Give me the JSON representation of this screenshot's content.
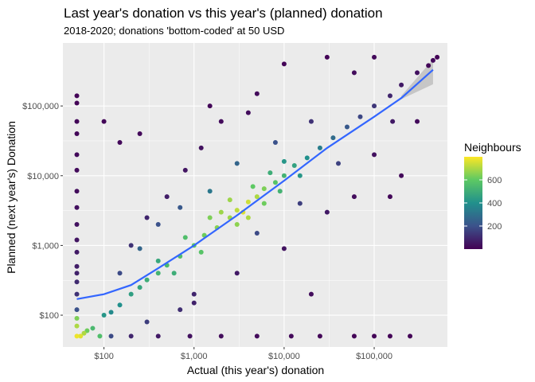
{
  "chart_data": {
    "type": "scatter",
    "title": "Last year's donation vs this year's (planned) donation",
    "subtitle": "2018-2020; donations 'bottom-coded' at 50 USD",
    "xlabel": "Actual (this year's) donation",
    "ylabel": "Planned (next year's) Donation",
    "x_scale": "log10",
    "y_scale": "log10",
    "xlim": [
      35,
      650000
    ],
    "ylim": [
      35,
      800000
    ],
    "x_ticks": [
      {
        "value": 100,
        "label": "$100"
      },
      {
        "value": 1000,
        "label": "$1,000"
      },
      {
        "value": 10000,
        "label": "$10,000"
      },
      {
        "value": 100000,
        "label": "$100,000"
      }
    ],
    "y_ticks": [
      {
        "value": 100,
        "label": "$100"
      },
      {
        "value": 1000,
        "label": "$1,000"
      },
      {
        "value": 10000,
        "label": "$10,000"
      },
      {
        "value": 100000,
        "label": "$100,000"
      }
    ],
    "grid": true,
    "color_variable": "Neighbours",
    "colorbar": {
      "title": "Neighbours",
      "range": [
        0,
        800
      ],
      "ticks": [
        200,
        400,
        600
      ],
      "colors": [
        "#440154",
        "#3b528b",
        "#21908c",
        "#5dc963",
        "#fde725"
      ]
    },
    "trend": {
      "type": "smooth",
      "color": "#3366ff",
      "band_color": "#999999",
      "points": [
        {
          "x": 50,
          "y": 170
        },
        {
          "x": 100,
          "y": 200
        },
        {
          "x": 200,
          "y": 270
        },
        {
          "x": 400,
          "y": 470
        },
        {
          "x": 1000,
          "y": 1000
        },
        {
          "x": 3000,
          "y": 2700
        },
        {
          "x": 10000,
          "y": 8500
        },
        {
          "x": 30000,
          "y": 25000
        },
        {
          "x": 100000,
          "y": 70000
        },
        {
          "x": 200000,
          "y": 130000
        },
        {
          "x": 450000,
          "y": 330000
        }
      ],
      "band_lower": [
        125000,
        205000
      ],
      "band_upper": [
        140000,
        465000
      ]
    },
    "series": [
      {
        "points": [
          {
            "x": 50,
            "y": 50,
            "n": 780
          },
          {
            "x": 55,
            "y": 50,
            "n": 760
          },
          {
            "x": 60,
            "y": 55,
            "n": 700
          },
          {
            "x": 65,
            "y": 60,
            "n": 620
          },
          {
            "x": 75,
            "y": 65,
            "n": 540
          },
          {
            "x": 90,
            "y": 50,
            "n": 560
          },
          {
            "x": 50,
            "y": 70,
            "n": 700
          },
          {
            "x": 50,
            "y": 90,
            "n": 640
          },
          {
            "x": 50,
            "y": 120,
            "n": 200
          },
          {
            "x": 50,
            "y": 200,
            "n": 120
          },
          {
            "x": 50,
            "y": 400,
            "n": 80
          },
          {
            "x": 50,
            "y": 800,
            "n": 60
          },
          {
            "x": 50,
            "y": 2000,
            "n": 40
          },
          {
            "x": 50,
            "y": 6000,
            "n": 30
          },
          {
            "x": 50,
            "y": 20000,
            "n": 20
          },
          {
            "x": 50,
            "y": 60000,
            "n": 15
          },
          {
            "x": 50,
            "y": 140000,
            "n": 10
          },
          {
            "x": 50,
            "y": 110000,
            "n": 10
          },
          {
            "x": 50,
            "y": 40000,
            "n": 15
          },
          {
            "x": 50,
            "y": 12000,
            "n": 25
          },
          {
            "x": 50,
            "y": 3500,
            "n": 35
          },
          {
            "x": 50,
            "y": 1200,
            "n": 50
          },
          {
            "x": 50,
            "y": 500,
            "n": 70
          },
          {
            "x": 50,
            "y": 300,
            "n": 100
          },
          {
            "x": 120,
            "y": 50,
            "n": 180
          },
          {
            "x": 200,
            "y": 50,
            "n": 90
          },
          {
            "x": 400,
            "y": 50,
            "n": 60
          },
          {
            "x": 900,
            "y": 50,
            "n": 40
          },
          {
            "x": 2000,
            "y": 50,
            "n": 30
          },
          {
            "x": 5000,
            "y": 50,
            "n": 25
          },
          {
            "x": 12000,
            "y": 50,
            "n": 20
          },
          {
            "x": 25000,
            "y": 50,
            "n": 15
          },
          {
            "x": 60000,
            "y": 50,
            "n": 10
          },
          {
            "x": 100000,
            "y": 50,
            "n": 10
          },
          {
            "x": 250000,
            "y": 50,
            "n": 10
          },
          {
            "x": 150000,
            "y": 50,
            "n": 10
          },
          {
            "x": 100,
            "y": 100,
            "n": 420
          },
          {
            "x": 120,
            "y": 110,
            "n": 380
          },
          {
            "x": 150,
            "y": 140,
            "n": 400
          },
          {
            "x": 200,
            "y": 200,
            "n": 450
          },
          {
            "x": 250,
            "y": 250,
            "n": 470
          },
          {
            "x": 300,
            "y": 320,
            "n": 500
          },
          {
            "x": 400,
            "y": 400,
            "n": 520
          },
          {
            "x": 500,
            "y": 520,
            "n": 540
          },
          {
            "x": 700,
            "y": 700,
            "n": 560
          },
          {
            "x": 1000,
            "y": 1000,
            "n": 600
          },
          {
            "x": 1300,
            "y": 1400,
            "n": 620
          },
          {
            "x": 1800,
            "y": 1800,
            "n": 650
          },
          {
            "x": 2500,
            "y": 2500,
            "n": 680
          },
          {
            "x": 3000,
            "y": 3200,
            "n": 720
          },
          {
            "x": 3500,
            "y": 3000,
            "n": 760
          },
          {
            "x": 4000,
            "y": 4200,
            "n": 740
          },
          {
            "x": 5000,
            "y": 5000,
            "n": 700
          },
          {
            "x": 6000,
            "y": 6500,
            "n": 640
          },
          {
            "x": 8000,
            "y": 8000,
            "n": 580
          },
          {
            "x": 10000,
            "y": 10000,
            "n": 520
          },
          {
            "x": 13000,
            "y": 14000,
            "n": 460
          },
          {
            "x": 18000,
            "y": 18000,
            "n": 400
          },
          {
            "x": 25000,
            "y": 25000,
            "n": 340
          },
          {
            "x": 35000,
            "y": 35000,
            "n": 280
          },
          {
            "x": 50000,
            "y": 50000,
            "n": 220
          },
          {
            "x": 70000,
            "y": 70000,
            "n": 170
          },
          {
            "x": 100000,
            "y": 100000,
            "n": 130
          },
          {
            "x": 150000,
            "y": 140000,
            "n": 90
          },
          {
            "x": 200000,
            "y": 200000,
            "n": 60
          },
          {
            "x": 300000,
            "y": 300000,
            "n": 40
          },
          {
            "x": 450000,
            "y": 450000,
            "n": 20
          },
          {
            "x": 500000,
            "y": 500000,
            "n": 10
          },
          {
            "x": 400000,
            "y": 380000,
            "n": 15
          },
          {
            "x": 2000,
            "y": 3000,
            "n": 680
          },
          {
            "x": 3000,
            "y": 2000,
            "n": 660
          },
          {
            "x": 1500,
            "y": 2500,
            "n": 640
          },
          {
            "x": 4000,
            "y": 2500,
            "n": 700
          },
          {
            "x": 2500,
            "y": 4500,
            "n": 680
          },
          {
            "x": 6000,
            "y": 4000,
            "n": 620
          },
          {
            "x": 4500,
            "y": 7000,
            "n": 600
          },
          {
            "x": 1200,
            "y": 800,
            "n": 580
          },
          {
            "x": 800,
            "y": 1300,
            "n": 560
          },
          {
            "x": 600,
            "y": 400,
            "n": 500
          },
          {
            "x": 400,
            "y": 600,
            "n": 480
          },
          {
            "x": 9000,
            "y": 6000,
            "n": 520
          },
          {
            "x": 7000,
            "y": 11000,
            "n": 500
          },
          {
            "x": 15000,
            "y": 10000,
            "n": 420
          },
          {
            "x": 10000,
            "y": 16000,
            "n": 420
          },
          {
            "x": 150,
            "y": 400,
            "n": 180
          },
          {
            "x": 200,
            "y": 1000,
            "n": 120
          },
          {
            "x": 300,
            "y": 2500,
            "n": 90
          },
          {
            "x": 500,
            "y": 5000,
            "n": 70
          },
          {
            "x": 800,
            "y": 12000,
            "n": 50
          },
          {
            "x": 1200,
            "y": 25000,
            "n": 40
          },
          {
            "x": 2000,
            "y": 60000,
            "n": 25
          },
          {
            "x": 1500,
            "y": 100000,
            "n": 15
          },
          {
            "x": 4000,
            "y": 80000,
            "n": 30
          },
          {
            "x": 10000,
            "y": 400000,
            "n": 10
          },
          {
            "x": 30000,
            "y": 500000,
            "n": 10
          },
          {
            "x": 100000,
            "y": 500000,
            "n": 20
          },
          {
            "x": 60000,
            "y": 300000,
            "n": 30
          },
          {
            "x": 5000,
            "y": 150000,
            "n": 25
          },
          {
            "x": 300,
            "y": 80,
            "n": 150
          },
          {
            "x": 1000,
            "y": 200,
            "n": 90
          },
          {
            "x": 3000,
            "y": 400,
            "n": 60
          },
          {
            "x": 10000,
            "y": 900,
            "n": 45
          },
          {
            "x": 20000,
            "y": 200,
            "n": 30
          },
          {
            "x": 30000,
            "y": 3000,
            "n": 60
          },
          {
            "x": 100000,
            "y": 20000,
            "n": 40
          },
          {
            "x": 200000,
            "y": 10000,
            "n": 20
          },
          {
            "x": 60000,
            "y": 5000,
            "n": 30
          },
          {
            "x": 160000,
            "y": 60000,
            "n": 60
          },
          {
            "x": 300000,
            "y": 60000,
            "n": 25
          },
          {
            "x": 150000,
            "y": 5000,
            "n": 15
          },
          {
            "x": 400,
            "y": 2000,
            "n": 200
          },
          {
            "x": 700,
            "y": 3500,
            "n": 220
          },
          {
            "x": 250,
            "y": 900,
            "n": 260
          },
          {
            "x": 150,
            "y": 30000,
            "n": 20
          },
          {
            "x": 100,
            "y": 60000,
            "n": 15
          },
          {
            "x": 250,
            "y": 40000,
            "n": 20
          },
          {
            "x": 1000,
            "y": 150,
            "n": 80
          },
          {
            "x": 700,
            "y": 120,
            "n": 110
          },
          {
            "x": 5000,
            "y": 1500,
            "n": 180
          },
          {
            "x": 15000,
            "y": 4000,
            "n": 150
          },
          {
            "x": 40000,
            "y": 15000,
            "n": 160
          },
          {
            "x": 20000,
            "y": 60000,
            "n": 120
          },
          {
            "x": 3000,
            "y": 15000,
            "n": 260
          },
          {
            "x": 8000,
            "y": 30000,
            "n": 200
          },
          {
            "x": 1500,
            "y": 6000,
            "n": 320
          }
        ]
      }
    ]
  }
}
